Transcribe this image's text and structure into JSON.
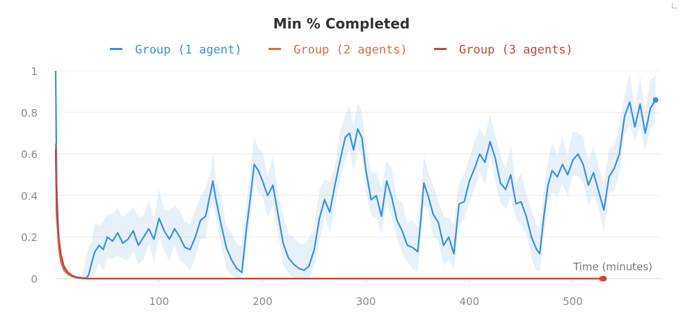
{
  "chart_data": {
    "type": "line",
    "title": "Min % Completed",
    "xlabel": "Time (minutes)",
    "ylabel": "",
    "xlim": [
      0,
      585
    ],
    "ylim": [
      0,
      1
    ],
    "xticks": [
      100,
      200,
      300,
      400,
      500
    ],
    "yticks": [
      0,
      0.2,
      0.4,
      0.6,
      0.8,
      1
    ],
    "ytick_labels": [
      "0",
      "0.2",
      "0.4",
      "0.6",
      "0.8",
      "1"
    ],
    "xtick_labels": [
      "100",
      "200",
      "300",
      "400",
      "500"
    ],
    "grid": true,
    "legend_position": "top-center",
    "series": [
      {
        "name": "Group (1 agent)",
        "color": "#3d8fd6",
        "band": true,
        "x": [
          0,
          1,
          3,
          5,
          8,
          12,
          16,
          20,
          25,
          30,
          32,
          35,
          38,
          42,
          46,
          50,
          55,
          60,
          65,
          70,
          75,
          80,
          85,
          90,
          95,
          100,
          105,
          110,
          115,
          120,
          125,
          130,
          135,
          140,
          145,
          150,
          152,
          155,
          160,
          165,
          170,
          175,
          180,
          184,
          188,
          192,
          196,
          200,
          205,
          210,
          215,
          220,
          225,
          230,
          235,
          240,
          245,
          250,
          255,
          260,
          265,
          270,
          275,
          280,
          284,
          288,
          292,
          296,
          300,
          305,
          310,
          315,
          320,
          325,
          330,
          335,
          340,
          345,
          350,
          353,
          356,
          360,
          365,
          370,
          375,
          380,
          385,
          390,
          395,
          400,
          405,
          410,
          415,
          420,
          425,
          430,
          435,
          440,
          445,
          450,
          455,
          460,
          465,
          468,
          472,
          476,
          480,
          485,
          490,
          495,
          500,
          505,
          510,
          515,
          520,
          525,
          530,
          535,
          540,
          545,
          550,
          555,
          560,
          565,
          570,
          575,
          580
        ],
        "y": [
          1.0,
          0.45,
          0.18,
          0.09,
          0.05,
          0.03,
          0.015,
          0.008,
          0.004,
          0.003,
          0.02,
          0.08,
          0.13,
          0.16,
          0.14,
          0.2,
          0.18,
          0.22,
          0.17,
          0.19,
          0.23,
          0.16,
          0.2,
          0.24,
          0.19,
          0.29,
          0.23,
          0.19,
          0.24,
          0.2,
          0.15,
          0.14,
          0.2,
          0.28,
          0.3,
          0.42,
          0.47,
          0.38,
          0.26,
          0.15,
          0.09,
          0.05,
          0.03,
          0.22,
          0.38,
          0.55,
          0.52,
          0.47,
          0.4,
          0.45,
          0.31,
          0.17,
          0.1,
          0.07,
          0.05,
          0.04,
          0.06,
          0.14,
          0.29,
          0.38,
          0.32,
          0.45,
          0.57,
          0.68,
          0.7,
          0.62,
          0.72,
          0.68,
          0.52,
          0.38,
          0.4,
          0.3,
          0.47,
          0.39,
          0.28,
          0.23,
          0.16,
          0.15,
          0.13,
          0.28,
          0.46,
          0.4,
          0.31,
          0.27,
          0.16,
          0.2,
          0.12,
          0.36,
          0.37,
          0.47,
          0.53,
          0.6,
          0.56,
          0.66,
          0.58,
          0.46,
          0.43,
          0.5,
          0.36,
          0.37,
          0.3,
          0.2,
          0.14,
          0.12,
          0.3,
          0.45,
          0.52,
          0.49,
          0.55,
          0.5,
          0.57,
          0.6,
          0.55,
          0.45,
          0.51,
          0.42,
          0.33,
          0.49,
          0.53,
          0.6,
          0.78,
          0.85,
          0.73,
          0.84,
          0.7,
          0.82,
          0.86
        ]
      },
      {
        "name": "Group (2 agents)",
        "color": "#e06a3b",
        "band": false,
        "x": [
          0,
          1,
          3,
          5,
          8,
          12,
          16,
          20,
          25,
          30,
          40,
          100,
          200,
          300,
          400,
          500,
          528
        ],
        "y": [
          0.65,
          0.3,
          0.15,
          0.08,
          0.04,
          0.02,
          0.01,
          0.005,
          0.002,
          0.0,
          0.0,
          0.0,
          0.0,
          0.0,
          0.0,
          0.0,
          0.0
        ]
      },
      {
        "name": "Group (3 agents)",
        "color": "#c0463c",
        "band": false,
        "x": [
          0,
          1,
          3,
          5,
          8,
          12,
          16,
          20,
          25,
          30,
          40,
          100,
          200,
          300,
          400,
          500,
          530
        ],
        "y": [
          0.62,
          0.33,
          0.2,
          0.12,
          0.06,
          0.03,
          0.015,
          0.006,
          0.002,
          0.0,
          0.0,
          0.0,
          0.0,
          0.0,
          0.0,
          0.0,
          0.0
        ]
      }
    ]
  }
}
